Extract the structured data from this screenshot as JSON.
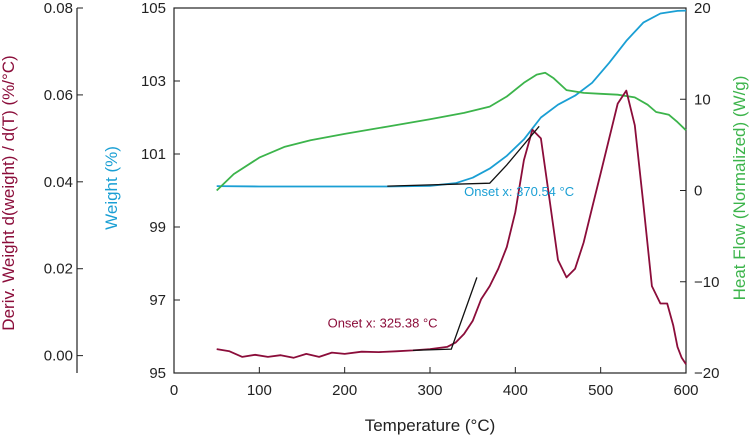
{
  "chart_data": {
    "type": "line",
    "xlabel": "Temperature (°C)",
    "ylabel_left_outer": "Deriv. Weight d(weight) / d(T)  (%/°C)",
    "ylabel_left_inner": "Weight (%)",
    "ylabel_right": "Heat Flow (Normalized) (W/g)",
    "xlim": [
      0,
      600
    ],
    "x_ticks": [
      "0",
      "100",
      "200",
      "300",
      "400",
      "500",
      "600"
    ],
    "weight_axis": {
      "ylim": [
        95,
        105
      ],
      "ticks": [
        "95",
        "97",
        "99",
        "101",
        "103",
        "105"
      ]
    },
    "deriv_axis": {
      "ylim": [
        -0.004,
        0.08
      ],
      "ticks": [
        "0.00",
        "0.02",
        "0.04",
        "0.06",
        "0.08"
      ]
    },
    "heatflow_axis": {
      "ylim": [
        -20,
        20
      ],
      "ticks": [
        "-20",
        "-10",
        "0",
        "10",
        "20"
      ]
    },
    "colors": {
      "weight": "#1a9fd4",
      "heatflow": "#3cb44b",
      "deriv": "#8b0d3a",
      "tangent": "#111111"
    },
    "series": [
      {
        "axis": "weight",
        "x": [
          50,
          100,
          150,
          200,
          250,
          300,
          330,
          350,
          370,
          390,
          410,
          430,
          450,
          470,
          490,
          510,
          530,
          550,
          570,
          590,
          600
        ],
        "y": [
          100.12,
          100.11,
          100.11,
          100.11,
          100.11,
          100.13,
          100.2,
          100.35,
          100.6,
          100.95,
          101.4,
          102.0,
          102.35,
          102.6,
          102.95,
          103.5,
          104.1,
          104.6,
          104.85,
          104.92,
          104.93
        ]
      },
      {
        "axis": "heatflow",
        "x": [
          50,
          70,
          100,
          130,
          160,
          200,
          250,
          300,
          340,
          370,
          390,
          410,
          425,
          435,
          445,
          460,
          480,
          500,
          520,
          540,
          555,
          565,
          570,
          580,
          590,
          600
        ],
        "y": [
          0.0,
          1.8,
          3.6,
          4.8,
          5.5,
          6.2,
          7.0,
          7.8,
          8.5,
          9.2,
          10.3,
          11.8,
          12.7,
          12.9,
          12.3,
          11.0,
          10.7,
          10.6,
          10.5,
          10.2,
          9.4,
          8.6,
          8.5,
          8.3,
          7.5,
          6.6
        ]
      },
      {
        "axis": "deriv",
        "x": [
          50,
          65,
          80,
          95,
          110,
          125,
          140,
          155,
          170,
          185,
          200,
          220,
          240,
          260,
          280,
          300,
          320,
          330,
          340,
          350,
          360,
          370,
          380,
          390,
          400,
          410,
          420,
          430,
          440,
          450,
          460,
          470,
          480,
          490,
          500,
          510,
          520,
          530,
          540,
          550,
          560,
          570,
          578,
          585,
          590,
          595,
          600
        ],
        "y": [
          0.0015,
          0.001,
          -0.0003,
          0.0002,
          -0.0003,
          0.0001,
          -0.0005,
          0.0004,
          -0.0003,
          0.0007,
          0.0004,
          0.0009,
          0.0008,
          0.001,
          0.0012,
          0.0015,
          0.002,
          0.003,
          0.005,
          0.008,
          0.013,
          0.016,
          0.02,
          0.025,
          0.033,
          0.045,
          0.052,
          0.05,
          0.036,
          0.022,
          0.018,
          0.02,
          0.026,
          0.034,
          0.042,
          0.05,
          0.058,
          0.061,
          0.053,
          0.035,
          0.016,
          0.012,
          0.012,
          0.007,
          0.002,
          -0.0005,
          -0.002
        ]
      }
    ],
    "tangents": [
      {
        "axis": "weight",
        "x": [
          250,
          370,
          390,
          428
        ],
        "y": [
          100.12,
          100.2,
          100.7,
          101.76
        ]
      },
      {
        "axis": "deriv",
        "x": [
          280,
          325,
          355
        ],
        "y": [
          0.0012,
          0.0015,
          0.018
        ]
      }
    ],
    "annotations": [
      {
        "text": "Onset x: 370.54 °C",
        "axis": "weight",
        "x": 340,
        "y": 99.85,
        "color": "#1a9fd4"
      },
      {
        "text": "Onset x: 325.38 °C",
        "axis": "deriv",
        "x": 180,
        "y": 0.0065,
        "color": "#8b0d3a"
      }
    ]
  }
}
